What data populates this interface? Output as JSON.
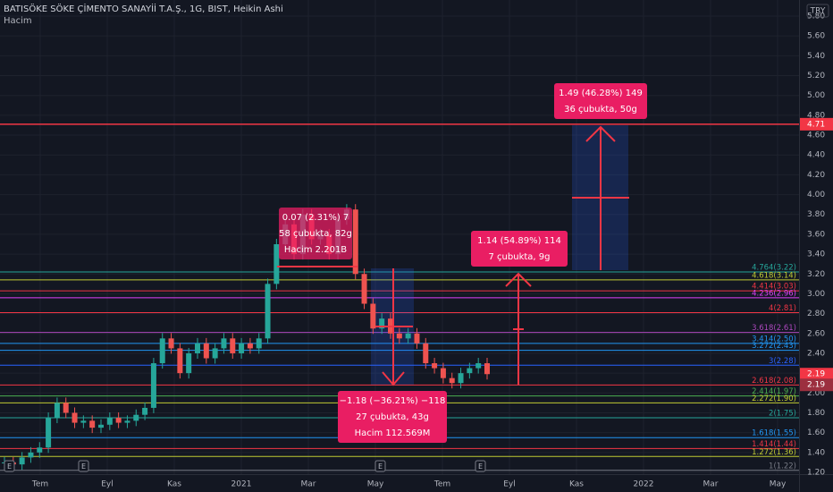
{
  "header": {
    "title": "BATISÖKE SÖKE ÇİMENTO SANAYİİ T.A.Ş., 1G, BIST, Heikin Ashi",
    "volume_label": "Hacim",
    "currency": "TRY"
  },
  "ylim": [
    1.2,
    5.8
  ],
  "yticks": [
    {
      "value": 5.8,
      "label": "5.80"
    },
    {
      "value": 5.6,
      "label": "5.60"
    },
    {
      "value": 5.4,
      "label": "5.40"
    },
    {
      "value": 5.2,
      "label": "5.20"
    },
    {
      "value": 5.0,
      "label": "5.00"
    },
    {
      "value": 4.8,
      "label": "4.80"
    },
    {
      "value": 4.6,
      "label": "4.60"
    },
    {
      "value": 4.4,
      "label": "4.40"
    },
    {
      "value": 4.2,
      "label": "4.20"
    },
    {
      "value": 4.0,
      "label": "4.00"
    },
    {
      "value": 3.8,
      "label": "3.80"
    },
    {
      "value": 3.6,
      "label": "3.60"
    },
    {
      "value": 3.4,
      "label": "3.40"
    },
    {
      "value": 3.2,
      "label": "3.20"
    },
    {
      "value": 3.0,
      "label": "3.00"
    },
    {
      "value": 2.8,
      "label": "2.80"
    },
    {
      "value": 2.6,
      "label": "2.60"
    },
    {
      "value": 2.4,
      "label": "2.40"
    },
    {
      "value": 2.2,
      "label": "2.20"
    },
    {
      "value": 2.0,
      "label": "2.00"
    },
    {
      "value": 1.8,
      "label": "1.80"
    },
    {
      "value": 1.6,
      "label": "1.60"
    },
    {
      "value": 1.4,
      "label": "1.40"
    },
    {
      "value": 1.2,
      "label": "1.20"
    }
  ],
  "time_axis": [
    "Tem",
    "Eyl",
    "Kas",
    "2021",
    "Mar",
    "May",
    "Tem",
    "Eyl",
    "Kas",
    "2022",
    "Mar",
    "May"
  ],
  "closes": [
    1.3,
    1.28,
    1.35,
    1.4,
    1.45,
    1.75,
    1.9,
    1.8,
    1.7,
    1.72,
    1.65,
    1.68,
    1.75,
    1.7,
    1.72,
    1.78,
    1.85,
    2.3,
    2.55,
    2.45,
    2.2,
    2.4,
    2.5,
    2.35,
    2.45,
    2.55,
    2.4,
    2.5,
    2.45,
    2.55,
    3.1,
    3.5,
    3.7,
    3.4,
    3.8,
    3.55,
    3.6,
    3.4,
    3.75,
    3.85,
    3.2,
    2.9,
    2.65,
    2.75,
    2.6,
    2.55,
    2.6,
    2.5,
    2.3,
    2.25,
    2.15,
    2.1,
    2.2,
    2.25,
    2.3,
    2.19
  ],
  "price_badges": [
    {
      "value": 4.71,
      "label": "4.71",
      "color": "#f23645"
    },
    {
      "value": 2.19,
      "label": "2.19",
      "color": "#f23645"
    },
    {
      "value": 2.19,
      "label": "2.19",
      "color": "#9c2f3f"
    }
  ],
  "fib_levels": [
    {
      "label": "4.764(3.22)",
      "price": 3.22,
      "color": "#26a69a"
    },
    {
      "label": "4.618(3.14)",
      "price": 3.14,
      "color": "#c0ca33"
    },
    {
      "label": "4.414(3.03)",
      "price": 3.03,
      "color": "#f23645"
    },
    {
      "label": "4.236(2.96)",
      "price": 2.96,
      "color": "#e040fb"
    },
    {
      "label": "4(2.81)",
      "price": 2.81,
      "color": "#f23645"
    },
    {
      "label": "3.618(2.61)",
      "price": 2.61,
      "color": "#ab47bc"
    },
    {
      "label": "3.414(2.50)",
      "price": 2.5,
      "color": "#2196f3"
    },
    {
      "label": "3.272(2.43)",
      "price": 2.43,
      "color": "#2196f3"
    },
    {
      "label": "3(2.28)",
      "price": 2.28,
      "color": "#2962ff"
    },
    {
      "label": "2.618(2.08)",
      "price": 2.08,
      "color": "#f23645"
    },
    {
      "label": "2.414(1.97)",
      "price": 1.97,
      "color": "#4caf50"
    },
    {
      "label": "2.272(1.90)",
      "price": 1.9,
      "color": "#c0ca33"
    },
    {
      "label": "2(1.75)",
      "price": 1.75,
      "color": "#26a69a"
    },
    {
      "label": "1.618(1.55)",
      "price": 1.55,
      "color": "#2196f3"
    },
    {
      "label": "1.414(1.44)",
      "price": 1.44,
      "color": "#f23645"
    },
    {
      "label": "1.272(1.36)",
      "price": 1.36,
      "color": "#c0ca33"
    },
    {
      "label": "1(1.22)",
      "price": 1.22,
      "color": "#787b86"
    }
  ],
  "measurements": [
    {
      "lines": [
        "0.07 (2.31%) 7",
        "58 çubukta, 82g",
        "Hacim 2.201B"
      ]
    },
    {
      "lines": [
        "−1.18 (−36.21%) −118",
        "27 çubukta, 43g",
        "Hacim 112.569M"
      ]
    },
    {
      "lines": [
        "1.14 (54.89%) 114",
        "7 çubukta, 9g"
      ]
    },
    {
      "lines": [
        "1.49 (46.28%) 149",
        "36 çubukta, 50g"
      ]
    }
  ],
  "earnings": [
    "E",
    "E",
    "E",
    "E"
  ]
}
